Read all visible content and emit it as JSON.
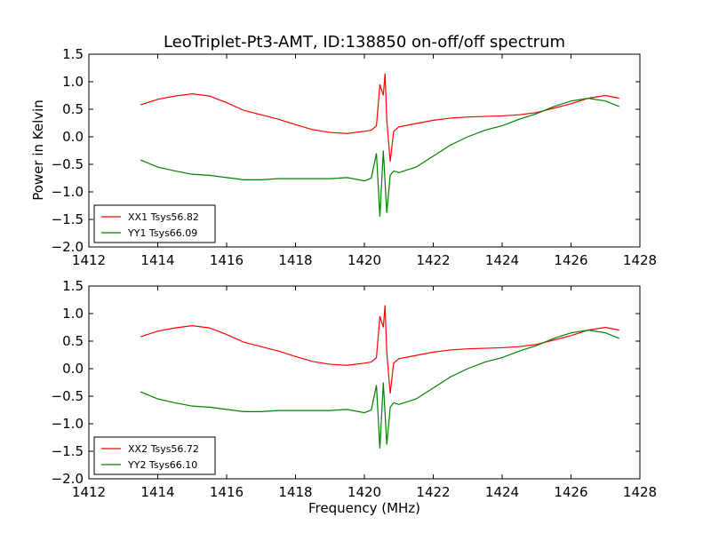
{
  "figure": {
    "title": "LeoTriplet-Pt3-AMT, ID:138850 on-off/off spectrum",
    "xlabel": "Frequency (MHz)",
    "ylabel": "Power in Kelvin"
  },
  "colors": {
    "red": "#ff0000",
    "green": "#008000"
  },
  "chart_data": [
    {
      "type": "line",
      "xlim": [
        1412,
        1428
      ],
      "ylim": [
        -2.0,
        1.5
      ],
      "xticks": [
        1412,
        1414,
        1416,
        1418,
        1420,
        1422,
        1424,
        1426,
        1428
      ],
      "yticks": [
        -2.0,
        -1.5,
        -1.0,
        -0.5,
        0.0,
        0.5,
        1.0,
        1.5
      ],
      "grid": false,
      "legend_position": "lower-left",
      "series": [
        {
          "name": "XX1 Tsys56.82",
          "color": "#ff0000",
          "x": [
            1413.5,
            1414.0,
            1414.5,
            1415.0,
            1415.5,
            1416.0,
            1416.5,
            1417.0,
            1417.5,
            1418.0,
            1418.5,
            1419.0,
            1419.5,
            1420.0,
            1420.2,
            1420.35,
            1420.45,
            1420.55,
            1420.6,
            1420.65,
            1420.75,
            1420.85,
            1421.0,
            1421.5,
            1422.0,
            1422.5,
            1423.0,
            1423.5,
            1424.0,
            1424.5,
            1425.0,
            1425.5,
            1426.0,
            1426.5,
            1427.0,
            1427.4
          ],
          "y": [
            0.58,
            0.68,
            0.74,
            0.78,
            0.74,
            0.62,
            0.48,
            0.4,
            0.32,
            0.22,
            0.13,
            0.08,
            0.06,
            0.1,
            0.12,
            0.2,
            0.95,
            0.75,
            1.15,
            0.3,
            -0.45,
            0.1,
            0.18,
            0.24,
            0.3,
            0.34,
            0.36,
            0.37,
            0.38,
            0.4,
            0.44,
            0.52,
            0.6,
            0.7,
            0.75,
            0.7
          ]
        },
        {
          "name": "YY1 Tsys66.09",
          "color": "#008000",
          "x": [
            1413.5,
            1414.0,
            1414.5,
            1415.0,
            1415.5,
            1416.0,
            1416.5,
            1417.0,
            1417.5,
            1418.0,
            1418.5,
            1419.0,
            1419.5,
            1420.0,
            1420.2,
            1420.35,
            1420.45,
            1420.55,
            1420.65,
            1420.75,
            1420.85,
            1421.0,
            1421.5,
            1422.0,
            1422.5,
            1423.0,
            1423.5,
            1424.0,
            1424.5,
            1425.0,
            1425.5,
            1426.0,
            1426.5,
            1427.0,
            1427.4
          ],
          "y": [
            -0.42,
            -0.55,
            -0.62,
            -0.68,
            -0.7,
            -0.74,
            -0.78,
            -0.78,
            -0.76,
            -0.76,
            -0.76,
            -0.76,
            -0.74,
            -0.8,
            -0.75,
            -0.3,
            -1.45,
            -0.25,
            -1.38,
            -0.7,
            -0.62,
            -0.65,
            -0.55,
            -0.35,
            -0.15,
            0.0,
            0.12,
            0.2,
            0.32,
            0.42,
            0.55,
            0.65,
            0.7,
            0.65,
            0.55
          ]
        }
      ]
    },
    {
      "type": "line",
      "xlim": [
        1412,
        1428
      ],
      "ylim": [
        -2.0,
        1.5
      ],
      "xticks": [
        1412,
        1414,
        1416,
        1418,
        1420,
        1422,
        1424,
        1426,
        1428
      ],
      "yticks": [
        -2.0,
        -1.5,
        -1.0,
        -0.5,
        0.0,
        0.5,
        1.0,
        1.5
      ],
      "grid": false,
      "legend_position": "lower-left",
      "series": [
        {
          "name": "XX2 Tsys56.72",
          "color": "#ff0000",
          "x": [
            1413.5,
            1414.0,
            1414.5,
            1415.0,
            1415.5,
            1416.0,
            1416.5,
            1417.0,
            1417.5,
            1418.0,
            1418.5,
            1419.0,
            1419.5,
            1420.0,
            1420.2,
            1420.35,
            1420.45,
            1420.55,
            1420.6,
            1420.65,
            1420.75,
            1420.85,
            1421.0,
            1421.5,
            1422.0,
            1422.5,
            1423.0,
            1423.5,
            1424.0,
            1424.5,
            1425.0,
            1425.5,
            1426.0,
            1426.5,
            1427.0,
            1427.4
          ],
          "y": [
            0.58,
            0.68,
            0.74,
            0.78,
            0.74,
            0.62,
            0.48,
            0.4,
            0.32,
            0.22,
            0.13,
            0.08,
            0.06,
            0.1,
            0.12,
            0.2,
            0.95,
            0.75,
            1.15,
            0.3,
            -0.45,
            0.1,
            0.18,
            0.24,
            0.3,
            0.34,
            0.36,
            0.37,
            0.38,
            0.4,
            0.44,
            0.52,
            0.6,
            0.7,
            0.75,
            0.7
          ]
        },
        {
          "name": "YY2 Tsys66.10",
          "color": "#008000",
          "x": [
            1413.5,
            1414.0,
            1414.5,
            1415.0,
            1415.5,
            1416.0,
            1416.5,
            1417.0,
            1417.5,
            1418.0,
            1418.5,
            1419.0,
            1419.5,
            1420.0,
            1420.2,
            1420.35,
            1420.45,
            1420.55,
            1420.65,
            1420.75,
            1420.85,
            1421.0,
            1421.5,
            1422.0,
            1422.5,
            1423.0,
            1423.5,
            1424.0,
            1424.5,
            1425.0,
            1425.5,
            1426.0,
            1426.5,
            1427.0,
            1427.4
          ],
          "y": [
            -0.42,
            -0.55,
            -0.62,
            -0.68,
            -0.7,
            -0.74,
            -0.78,
            -0.78,
            -0.76,
            -0.76,
            -0.76,
            -0.76,
            -0.74,
            -0.8,
            -0.75,
            -0.3,
            -1.45,
            -0.25,
            -1.38,
            -0.7,
            -0.62,
            -0.65,
            -0.55,
            -0.35,
            -0.15,
            0.0,
            0.12,
            0.2,
            0.32,
            0.42,
            0.55,
            0.65,
            0.7,
            0.65,
            0.55
          ]
        }
      ]
    }
  ]
}
